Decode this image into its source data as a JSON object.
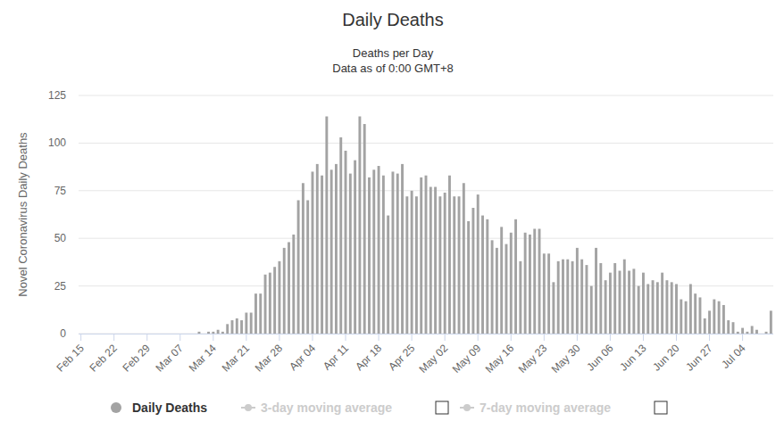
{
  "chart_data": {
    "type": "bar",
    "title": "Daily Deaths",
    "subtitle": [
      "Deaths per Day",
      "Data as of 0:00 GMT+8"
    ],
    "y_label": "Novel Coronavirus Daily Deaths",
    "annotations": [
      "3-day moving average",
      "7-day moving average"
    ],
    "categories": [
      "Feb 15",
      null,
      null,
      null,
      null,
      null,
      null,
      "Feb 22",
      null,
      null,
      null,
      null,
      null,
      null,
      "Feb 29",
      null,
      null,
      null,
      null,
      null,
      null,
      "Mar 07",
      null,
      null,
      null,
      null,
      null,
      null,
      "Mar 14",
      null,
      null,
      null,
      null,
      null,
      null,
      "Mar 21",
      null,
      null,
      null,
      null,
      null,
      null,
      "Mar 28",
      null,
      null,
      null,
      null,
      null,
      null,
      "Apr 04",
      null,
      null,
      null,
      null,
      null,
      null,
      "Apr 11",
      null,
      null,
      null,
      null,
      null,
      null,
      "Apr 18",
      null,
      null,
      null,
      null,
      null,
      null,
      "Apr 25",
      null,
      null,
      null,
      null,
      null,
      null,
      "May 02",
      null,
      null,
      null,
      null,
      null,
      null,
      "May 09",
      null,
      null,
      null,
      null,
      null,
      null,
      "May 16",
      null,
      null,
      null,
      null,
      null,
      null,
      "May 23",
      null,
      null,
      null,
      null,
      null,
      null,
      "May 30",
      null,
      null,
      null,
      null,
      null,
      null,
      "Jun 06",
      null,
      null,
      null,
      null,
      null,
      null,
      "Jun 13",
      null,
      null,
      null,
      null,
      null,
      null,
      "Jun 20",
      null,
      null,
      null,
      null,
      null,
      null,
      "Jun 27",
      null,
      null,
      null,
      null,
      null,
      null,
      "Jul 04",
      null,
      null,
      null,
      null,
      null,
      null
    ],
    "series": [
      {
        "name": "Daily Deaths",
        "color": "#a3a3a3",
        "values": [
          0,
          0,
          0,
          0,
          0,
          0,
          0,
          0,
          0,
          0,
          0,
          0,
          0,
          0,
          0,
          0,
          0,
          0,
          0,
          0,
          0,
          0,
          0,
          0,
          0,
          1,
          0,
          1,
          1,
          2,
          1,
          5,
          7,
          8,
          7,
          11,
          11,
          21,
          21,
          31,
          32,
          35,
          38,
          45,
          48,
          52,
          70,
          79,
          70,
          85,
          89,
          83,
          114,
          86,
          89,
          103,
          96,
          84,
          91,
          114,
          110,
          82,
          86,
          88,
          83,
          62,
          85,
          84,
          89,
          72,
          75,
          72,
          82,
          83,
          77,
          77,
          72,
          74,
          83,
          72,
          72,
          79,
          59,
          66,
          73,
          62,
          60,
          49,
          45,
          56,
          47,
          53,
          60,
          38,
          53,
          52,
          55,
          55,
          42,
          42,
          27,
          38,
          39,
          39,
          38,
          45,
          39,
          36,
          25,
          45,
          37,
          28,
          32,
          37,
          33,
          39,
          33,
          34,
          25,
          32,
          26,
          28,
          27,
          32,
          28,
          27,
          26,
          18,
          17,
          26,
          21,
          19,
          8,
          12,
          18,
          17,
          15,
          7,
          6,
          1,
          3,
          1,
          4,
          2,
          0,
          1,
          12
        ]
      }
    ],
    "ylim": [
      0,
      125
    ],
    "yticks": [
      0,
      25,
      50,
      75,
      100,
      125
    ],
    "grid": true,
    "legend": "bottom"
  }
}
